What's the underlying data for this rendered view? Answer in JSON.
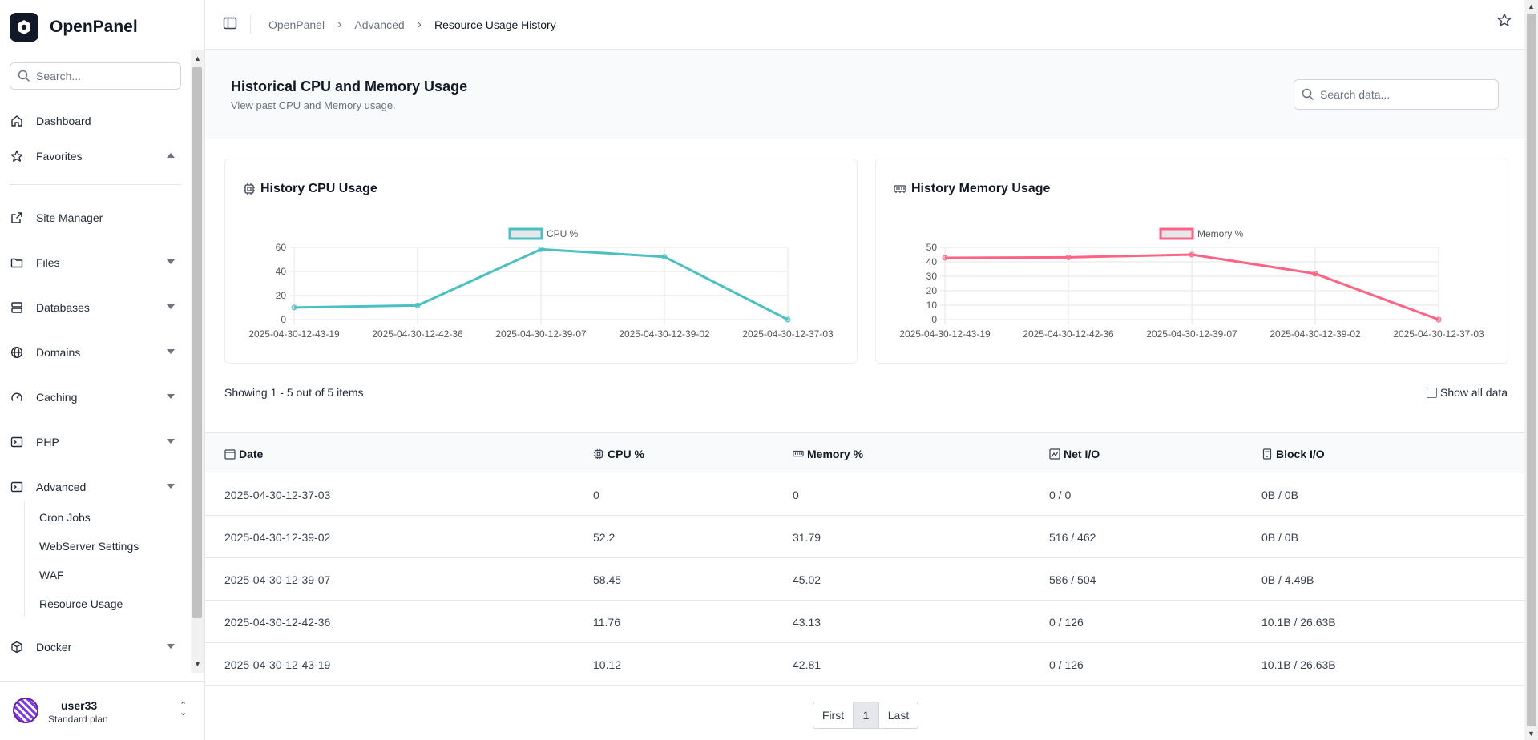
{
  "sidebar": {
    "brand": "OpenPanel",
    "search_placeholder": "Search...",
    "items": [
      {
        "label": "Dashboard",
        "icon": "home-icon"
      },
      {
        "label": "Favorites",
        "icon": "star-icon"
      },
      {
        "label": "Site Manager",
        "icon": "external-link-icon"
      },
      {
        "label": "Files",
        "icon": "folder-icon"
      },
      {
        "label": "Databases",
        "icon": "database-icon"
      },
      {
        "label": "Domains",
        "icon": "globe-icon"
      },
      {
        "label": "Caching",
        "icon": "gauge-icon"
      },
      {
        "label": "PHP",
        "icon": "terminal-icon"
      },
      {
        "label": "Advanced",
        "icon": "terminal-icon"
      },
      {
        "label": "Docker",
        "icon": "box-icon"
      }
    ],
    "advanced_sub": [
      "Cron Jobs",
      "WebServer Settings",
      "WAF",
      "Resource Usage"
    ],
    "user": {
      "name": "user33",
      "plan": "Standard plan"
    }
  },
  "breadcrumb": [
    "OpenPanel",
    "Advanced",
    "Resource Usage History"
  ],
  "header": {
    "title": "Historical CPU and Memory Usage",
    "subtitle": "View past CPU and Memory usage.",
    "search_placeholder": "Search data..."
  },
  "cpu_card": {
    "title": "History CPU Usage"
  },
  "mem_card": {
    "title": "History Memory Usage"
  },
  "chart_data": [
    {
      "type": "line",
      "x": [
        "2025-04-30-12-43-19",
        "2025-04-30-12-42-36",
        "2025-04-30-12-39-07",
        "2025-04-30-12-39-02",
        "2025-04-30-12-37-03"
      ],
      "series": [
        {
          "name": "CPU %",
          "values": [
            10.12,
            11.76,
            58.45,
            52.2,
            0
          ]
        }
      ],
      "ylim": [
        0,
        60
      ],
      "yticks": [
        0,
        20,
        40,
        60
      ],
      "color": "#4bc0c0",
      "legend": "top"
    },
    {
      "type": "line",
      "x": [
        "2025-04-30-12-43-19",
        "2025-04-30-12-42-36",
        "2025-04-30-12-39-07",
        "2025-04-30-12-39-02",
        "2025-04-30-12-37-03"
      ],
      "series": [
        {
          "name": "Memory %",
          "values": [
            42.81,
            43.13,
            45.02,
            31.79,
            0
          ]
        }
      ],
      "ylim": [
        0,
        50
      ],
      "yticks": [
        0,
        10,
        20,
        30,
        40,
        50
      ],
      "color": "#ff6384",
      "legend": "top"
    }
  ],
  "table": {
    "showing": "Showing 1 - 5 out of 5 items",
    "show_all": "Show all data",
    "columns": [
      "Date",
      "CPU %",
      "Memory %",
      "Net I/O",
      "Block I/O"
    ],
    "rows": [
      [
        "2025-04-30-12-37-03",
        "0",
        "0",
        "0 / 0",
        "0B / 0B"
      ],
      [
        "2025-04-30-12-39-02",
        "52.2",
        "31.79",
        "516 / 462",
        "0B / 0B"
      ],
      [
        "2025-04-30-12-39-07",
        "58.45",
        "45.02",
        "586 / 504",
        "0B / 4.49B"
      ],
      [
        "2025-04-30-12-42-36",
        "11.76",
        "43.13",
        "0 / 126",
        "10.1B / 26.63B"
      ],
      [
        "2025-04-30-12-43-19",
        "10.12",
        "42.81",
        "0 / 126",
        "10.1B / 26.63B"
      ]
    ]
  },
  "pager": {
    "first": "First",
    "page": "1",
    "last": "Last"
  }
}
